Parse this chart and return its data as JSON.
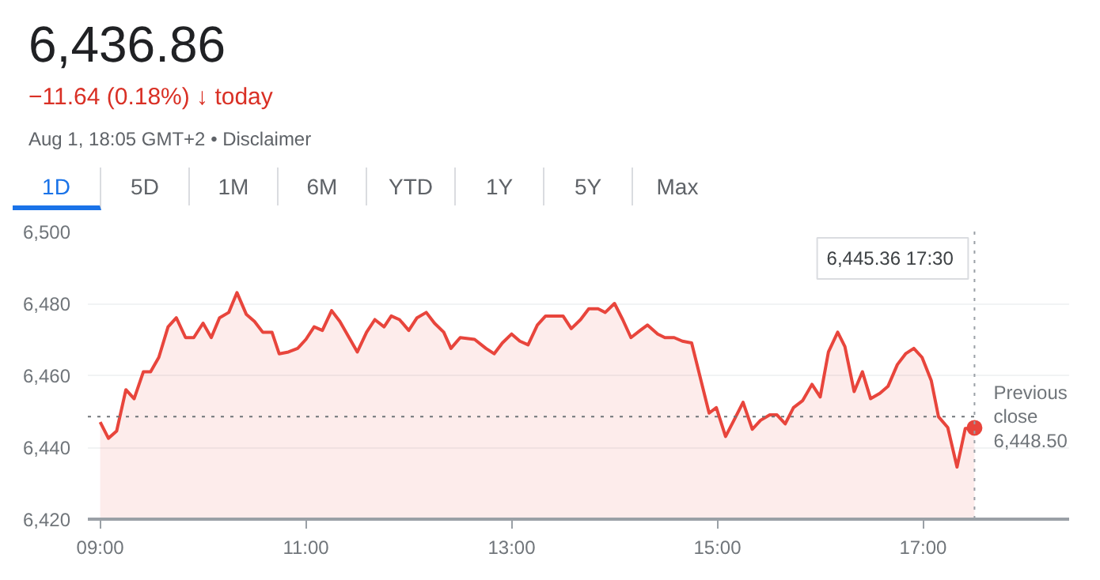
{
  "chart_data": {
    "type": "area",
    "title": "6,436.86",
    "subtitle": "−11.64 (0.18%) ↓ today",
    "annotations": [
      "Aug 1, 18:05 GMT+2 • Disclaimer",
      "1D",
      "5D",
      "1M",
      "6M",
      "YTD",
      "1Y",
      "5Y",
      "Max",
      "6,445.36  17:30"
    ],
    "x": [
      9.0,
      9.08,
      9.16,
      9.25,
      9.33,
      9.42,
      9.49,
      9.57,
      9.66,
      9.74,
      9.83,
      9.91,
      10.0,
      10.08,
      10.16,
      10.25,
      10.33,
      10.42,
      10.5,
      10.58,
      10.67,
      10.74,
      10.83,
      10.92,
      11.0,
      11.08,
      11.16,
      11.25,
      11.33,
      11.42,
      11.5,
      11.59,
      11.67,
      11.76,
      11.83,
      11.91,
      12.0,
      12.08,
      12.17,
      12.25,
      12.34,
      12.41,
      12.5,
      12.64,
      12.75,
      12.83,
      12.91,
      13.0,
      13.08,
      13.16,
      13.25,
      13.33,
      13.41,
      13.5,
      13.58,
      13.67,
      13.75,
      13.84,
      13.91,
      14.0,
      14.08,
      14.16,
      14.25,
      14.32,
      14.42,
      14.49,
      14.58,
      14.66,
      14.75,
      14.92,
      14.99,
      15.08,
      15.17,
      15.25,
      15.34,
      15.42,
      15.51,
      15.58,
      15.66,
      15.74,
      15.83,
      15.92,
      16.0,
      16.08,
      16.17,
      16.24,
      16.33,
      16.41,
      16.49,
      16.58,
      16.66,
      16.75,
      16.83,
      16.91,
      16.99,
      17.08,
      17.15,
      17.24,
      17.33,
      17.41,
      17.5
    ],
    "series": [
      {
        "color": "#e8453c",
        "values": [
          6447,
          6442.5,
          6444.5,
          6456,
          6453.5,
          6461,
          6461,
          6465,
          6473.5,
          6476,
          6470.5,
          6470.5,
          6474.5,
          6470.5,
          6476,
          6477.5,
          6483,
          6477,
          6475,
          6472,
          6472,
          6466,
          6466.5,
          6467.5,
          6470,
          6473.5,
          6472.5,
          6478,
          6475,
          6470.5,
          6466.5,
          6472,
          6475.5,
          6473.5,
          6476.5,
          6475.5,
          6472.5,
          6476,
          6477.5,
          6474.5,
          6472,
          6467.5,
          6470.5,
          6470,
          6467.5,
          6466,
          6469,
          6471.5,
          6469.5,
          6468.5,
          6474,
          6476.5,
          6476.5,
          6476.5,
          6473,
          6475.5,
          6478.5,
          6478.5,
          6477.5,
          6480,
          6475.5,
          6470.5,
          6472.5,
          6474,
          6471.5,
          6470.5,
          6470.5,
          6469.5,
          6469,
          6449.5,
          6451,
          6443,
          6448,
          6452.5,
          6445,
          6447.5,
          6449,
          6449,
          6446.5,
          6451,
          6453,
          6457.5,
          6454,
          6466.5,
          6472,
          6468,
          6455.5,
          6461,
          6453.5,
          6455,
          6457,
          6463,
          6466,
          6467.5,
          6465,
          6458.5,
          6448.5,
          6445.5,
          6434.5,
          6445.2,
          6445.4
        ]
      }
    ],
    "xlim": [
      8.88,
      18.42
    ],
    "ylim": [
      6420,
      6500
    ],
    "xticks": [
      {
        "value": 9,
        "label": "09:00"
      },
      {
        "value": 11,
        "label": "11:00"
      },
      {
        "value": 13,
        "label": "13:00"
      },
      {
        "value": 15,
        "label": "15:00"
      },
      {
        "value": 17,
        "label": "17:00"
      }
    ],
    "yticks": [
      {
        "value": 6420,
        "label": "6,420"
      },
      {
        "value": 6440,
        "label": "6,440"
      },
      {
        "value": 6460,
        "label": "6,460"
      },
      {
        "value": 6480,
        "label": "6,480"
      },
      {
        "value": 6500,
        "label": "6,500"
      }
    ],
    "ref_lines": [
      {
        "axis": "y",
        "value": 6448.5,
        "label": "Previous close 6,448.50",
        "color": "#70757a",
        "line_style": "dotted"
      },
      {
        "axis": "x",
        "value": 17.5,
        "label": null,
        "color": "#9aa0a6",
        "line_style": "dotted"
      }
    ],
    "grid": "y"
  }
}
